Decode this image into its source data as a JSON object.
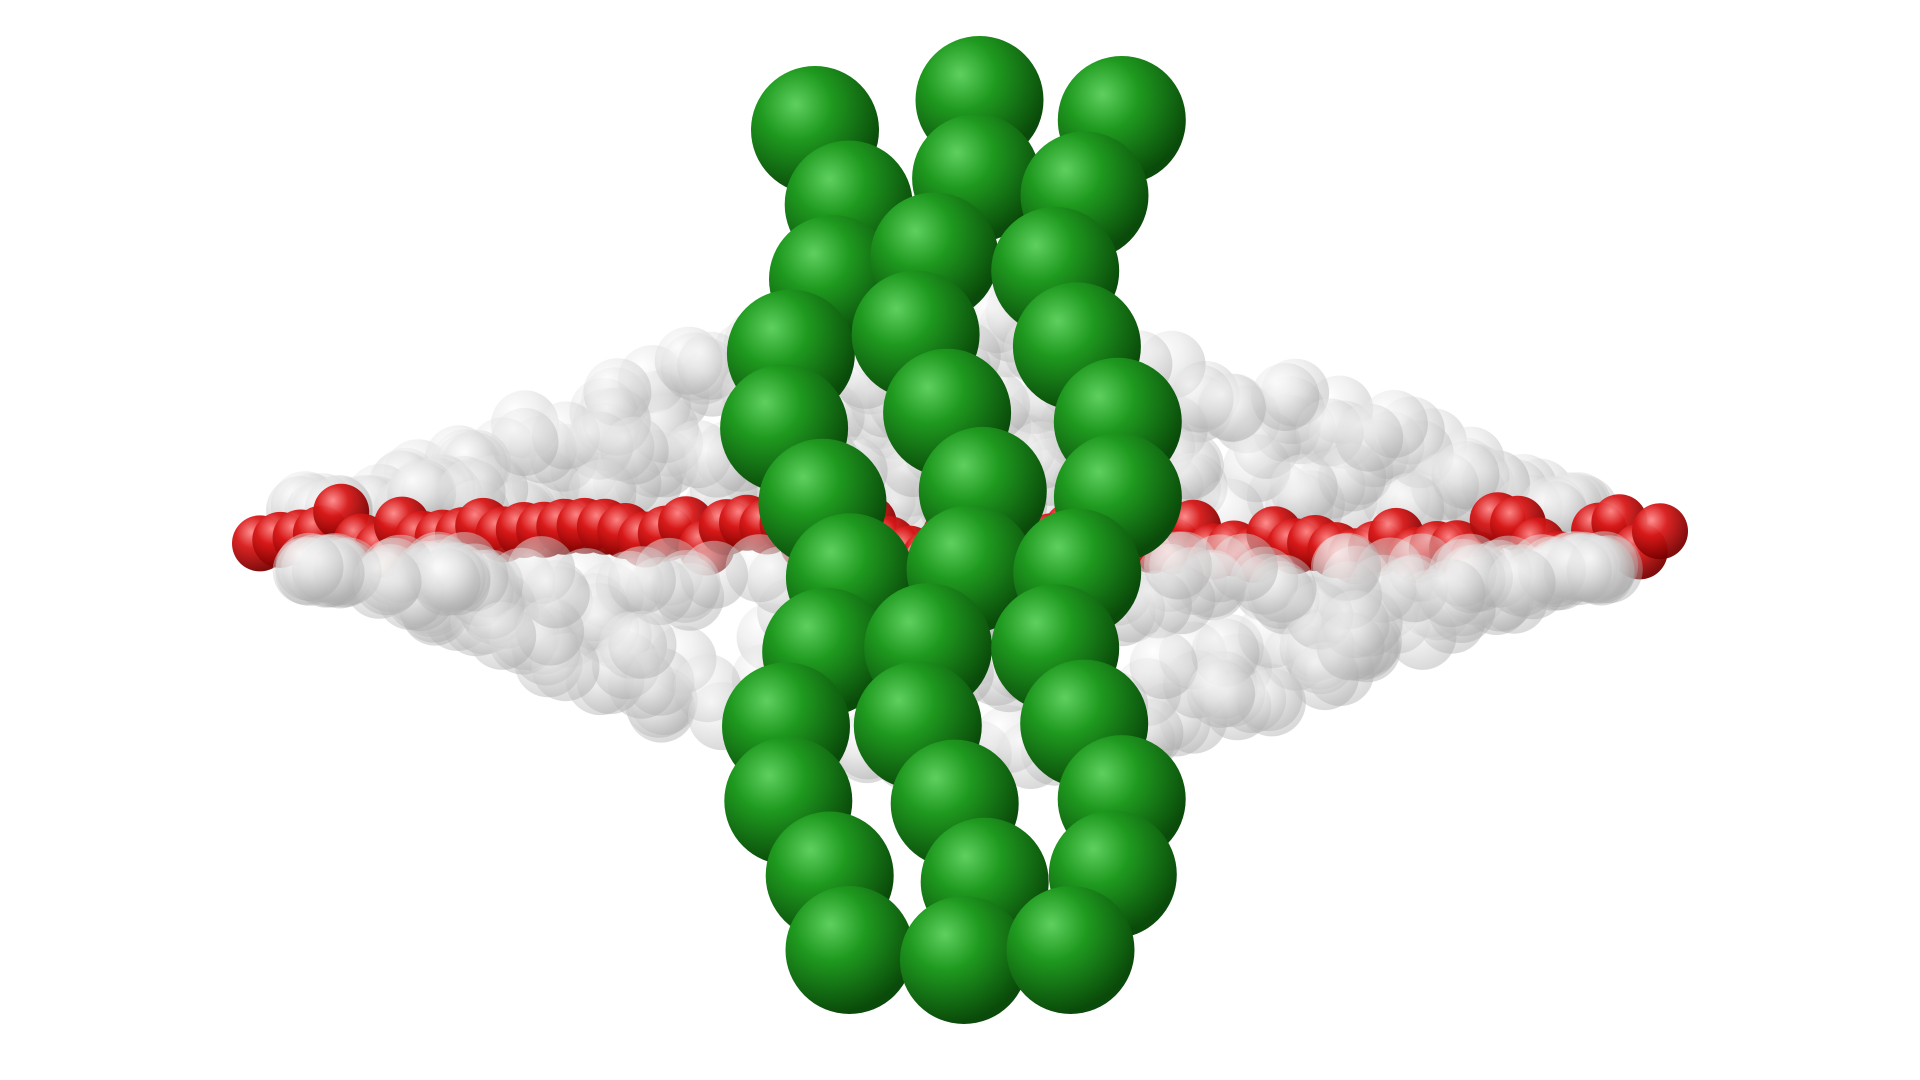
{
  "scene": {
    "subject": "molecular-bead-render",
    "background": "#ffffff",
    "colors": {
      "membrane_bead": "#d9d9d9",
      "core_bead": "#cc1010",
      "peptide_bead": "#1a8a1a"
    },
    "groups": [
      {
        "name": "membrane-upper-leaflet",
        "color_key": "membrane_bead",
        "opacity": 0.55
      },
      {
        "name": "membrane-core",
        "color_key": "core_bead",
        "opacity": 0.95
      },
      {
        "name": "membrane-lower-leaflet",
        "color_key": "membrane_bead",
        "opacity": 0.55
      },
      {
        "name": "peptide-bundle",
        "color_key": "peptide_bead",
        "opacity": 1.0
      }
    ]
  }
}
